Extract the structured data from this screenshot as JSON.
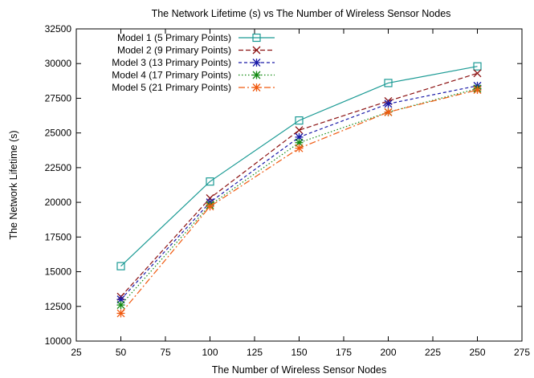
{
  "chart_data": {
    "type": "line",
    "title": "The Network Lifetime (s) vs The Number of Wireless Sensor Nodes",
    "xlabel": "The Number of Wireless Sensor Nodes",
    "ylabel": "The Network Lifetime (s)",
    "xlim": [
      25,
      275
    ],
    "ylim": [
      10000,
      32500
    ],
    "xticks": [
      25,
      50,
      75,
      100,
      125,
      150,
      175,
      200,
      225,
      250,
      275
    ],
    "yticks": [
      10000,
      12500,
      15000,
      17500,
      20000,
      22500,
      25000,
      27500,
      30000,
      32500
    ],
    "grid": false,
    "legend_position": "top-left",
    "x": [
      50,
      100,
      150,
      200,
      250
    ],
    "series": [
      {
        "name": "Model 1 (5 Primary Points)",
        "values": [
          15400,
          21500,
          25900,
          28600,
          29800
        ],
        "color": "#1a9a94",
        "marker": "square",
        "dash": "solid"
      },
      {
        "name": "Model 2 (9 Primary Points)",
        "values": [
          13200,
          20300,
          25200,
          27300,
          29300
        ],
        "color": "#8b1010",
        "marker": "x",
        "dash": "dashed"
      },
      {
        "name": "Model 3 (13 Primary Points)",
        "values": [
          13000,
          20000,
          24700,
          27100,
          28400
        ],
        "color": "#1a1aa8",
        "marker": "star",
        "dash": "dashed-fine"
      },
      {
        "name": "Model 4 (17 Primary Points)",
        "values": [
          12600,
          19800,
          24300,
          26500,
          28200
        ],
        "color": "#138a13",
        "marker": "star",
        "dash": "dotted"
      },
      {
        "name": "Model 5 (21 Primary Points)",
        "values": [
          12000,
          19700,
          23900,
          26500,
          28100
        ],
        "color": "#f05a10",
        "marker": "star",
        "dash": "dash-dot"
      }
    ]
  }
}
